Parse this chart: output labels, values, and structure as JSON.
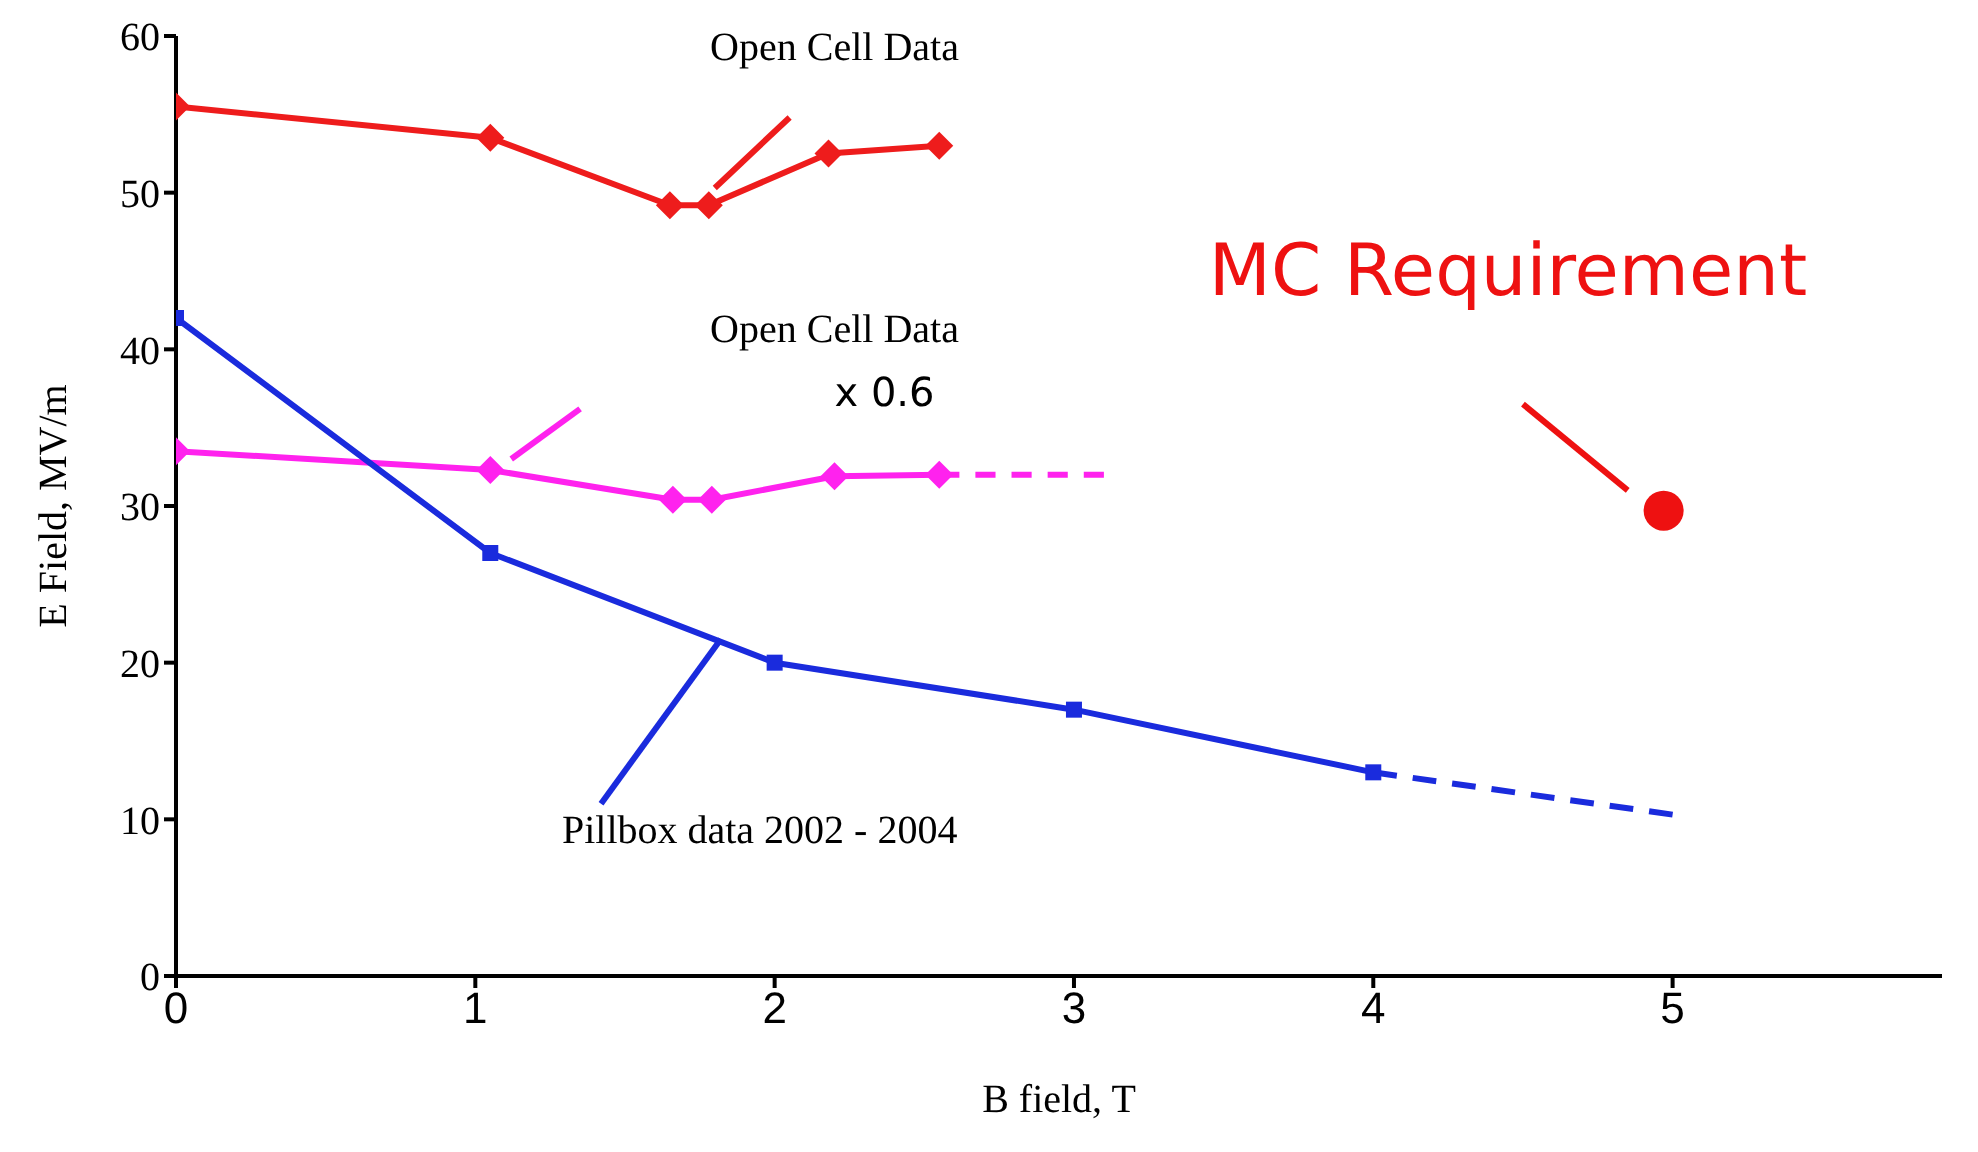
{
  "chart_data": {
    "type": "line",
    "xlabel": "B field, T",
    "ylabel": "E Field, MV/m",
    "xlim": [
      0,
      5.9
    ],
    "xticks": [
      0,
      1,
      2,
      3,
      4,
      5
    ],
    "ylim": [
      0,
      60
    ],
    "yticks": [
      0,
      10,
      20,
      30,
      40,
      50,
      60
    ],
    "series": [
      {
        "name": "Open Cell Data",
        "color": "#ee1c1c",
        "marker": "diamond",
        "line_style": "solid",
        "x": [
          0,
          1.05,
          1.65,
          1.78,
          2.18,
          2.55
        ],
        "values": [
          55.5,
          53.5,
          49.2,
          49.2,
          52.5,
          53
        ]
      },
      {
        "name": "Open Cell Data\nx 0.6",
        "color": "#ff22ee",
        "marker": "diamond",
        "line_style": "solid",
        "x": [
          0,
          1.05,
          1.66,
          1.79,
          2.2,
          2.55
        ],
        "values": [
          33.5,
          32.3,
          30.4,
          30.4,
          31.9,
          32
        ]
      },
      {
        "color": "#ff22ee",
        "marker": "none",
        "line_style": "dashed",
        "x": [
          2.55,
          3.1
        ],
        "values": [
          32,
          32
        ]
      },
      {
        "name": "Pillbox data 2002 - 2004",
        "color": "#1a2bdd",
        "marker": "square",
        "line_style": "solid",
        "x": [
          0,
          1.05,
          2,
          3,
          4
        ],
        "values": [
          42,
          27,
          20,
          17,
          13
        ]
      },
      {
        "color": "#1a2bdd",
        "marker": "none",
        "line_style": "dashed",
        "x": [
          4,
          5
        ],
        "values": [
          13,
          10.3
        ]
      },
      {
        "name": "MC Requirement",
        "type": "scatter",
        "color": "#ee1111",
        "marker": "circle",
        "x": [
          4.97
        ],
        "values": [
          29.7
        ]
      }
    ]
  }
}
